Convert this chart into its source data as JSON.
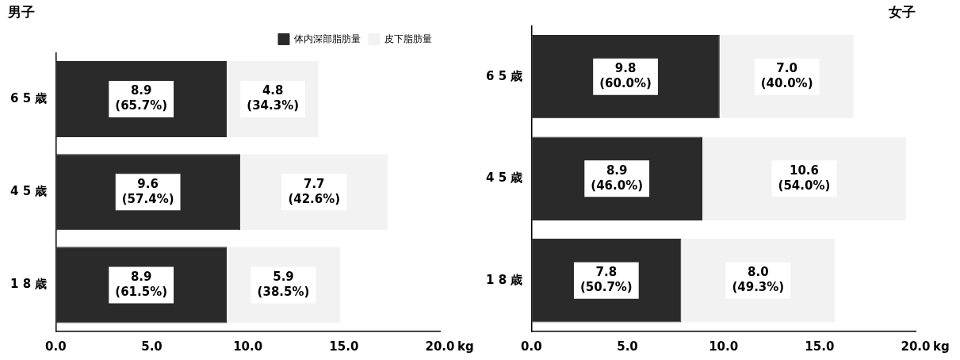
{
  "chart_data": [
    {
      "type": "bar",
      "orientation": "horizontal",
      "stacked": true,
      "title": "男子",
      "xlabel": "kg",
      "categories": [
        "6 5 歳",
        "4 5 歳",
        "1 8 歳"
      ],
      "series": [
        {
          "name": "体内深部脂肪量",
          "color": "#2a2a2a",
          "values": [
            8.9,
            9.6,
            8.9
          ],
          "value_labels": [
            "8.9\n(65.7%)",
            "9.6\n(57.4%)",
            "8.9\n(61.5%)"
          ]
        },
        {
          "name": "皮下脂肪量",
          "color": "#f2f2f2",
          "values": [
            4.8,
            7.7,
            5.9
          ],
          "value_labels": [
            "4.8\n(34.3%)",
            "7.7\n(42.6%)",
            "5.9\n(38.5%)"
          ]
        }
      ],
      "xlim": [
        0,
        20
      ],
      "xticks": [
        {
          "value": 0,
          "label": "0.0"
        },
        {
          "value": 5,
          "label": "5.0"
        },
        {
          "value": 10,
          "label": "10.0"
        },
        {
          "value": 15,
          "label": "15.0"
        },
        {
          "value": 20,
          "label": "20.0"
        }
      ],
      "grid": false,
      "legend": "top right"
    },
    {
      "type": "bar",
      "orientation": "horizontal",
      "stacked": true,
      "title": "女子",
      "xlabel": "kg",
      "categories": [
        "6 5 歳",
        "4 5 歳",
        "1 8 歳"
      ],
      "series": [
        {
          "color": "#2a2a2a",
          "values": [
            9.8,
            8.9,
            7.8
          ],
          "value_labels": [
            "9.8\n(60.0%)",
            "8.9\n(46.0%)",
            "7.8\n(50.7%)"
          ]
        },
        {
          "color": "#f2f2f2",
          "values": [
            7.0,
            10.6,
            8.0
          ],
          "value_labels": [
            "7.0\n(40.0%)",
            "10.6\n(54.0%)",
            "8.0\n(49.3%)"
          ]
        }
      ],
      "xlim": [
        0,
        20
      ],
      "xticks": [
        {
          "value": 0,
          "label": "0.0"
        },
        {
          "value": 5,
          "label": "5.0"
        },
        {
          "value": 10,
          "label": "10.0"
        },
        {
          "value": 15,
          "label": "15.0"
        },
        {
          "value": 20,
          "label": "20.0"
        }
      ],
      "grid": false
    }
  ]
}
